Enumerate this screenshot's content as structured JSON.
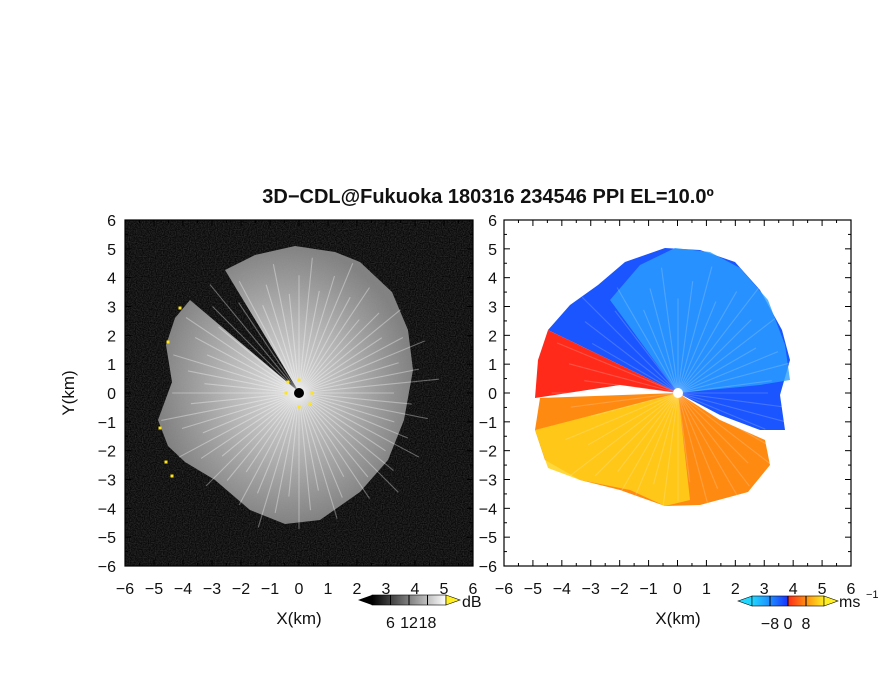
{
  "title": "3D−CDL@Fukuoka 180316 234546 PPI EL=10.0º",
  "chart_data": [
    {
      "type": "heatmap",
      "panel": "reflectivity",
      "xlabel": "X(km)",
      "ylabel": "Y(km)",
      "xlim": [
        -6,
        6
      ],
      "ylim": [
        -6,
        6
      ],
      "xticks": [
        "−6",
        "−5",
        "−4",
        "−3",
        "−2",
        "−1",
        "0",
        "1",
        "2",
        "3",
        "4",
        "5",
        "6"
      ],
      "yticks": [
        "6",
        "5",
        "4",
        "3",
        "2",
        "1",
        "0",
        "−1",
        "−2",
        "−3",
        "−4",
        "−5",
        "−6"
      ],
      "colorbar": {
        "unit": "dB",
        "ticks": [
          "6",
          "12",
          "18"
        ],
        "tick_values": [
          6,
          12,
          18
        ],
        "range": [
          0,
          24
        ],
        "colormap": "grayscale"
      },
      "grid": false
    },
    {
      "type": "heatmap",
      "panel": "doppler_velocity",
      "xlabel": "X(km)",
      "ylabel": "",
      "xlim": [
        -6,
        6
      ],
      "ylim": [
        -6,
        6
      ],
      "xticks": [
        "−6",
        "−5",
        "−4",
        "−3",
        "−2",
        "−1",
        "0",
        "1",
        "2",
        "3",
        "4",
        "5",
        "6"
      ],
      "colorbar": {
        "unit": "ms",
        "unit_exp": "−1",
        "ticks": [
          "−8",
          "0",
          "8"
        ],
        "tick_values": [
          -8,
          0,
          8
        ],
        "range": [
          -16,
          16
        ],
        "colormap": "cyan-blue-red-yellow"
      },
      "grid": false
    }
  ]
}
